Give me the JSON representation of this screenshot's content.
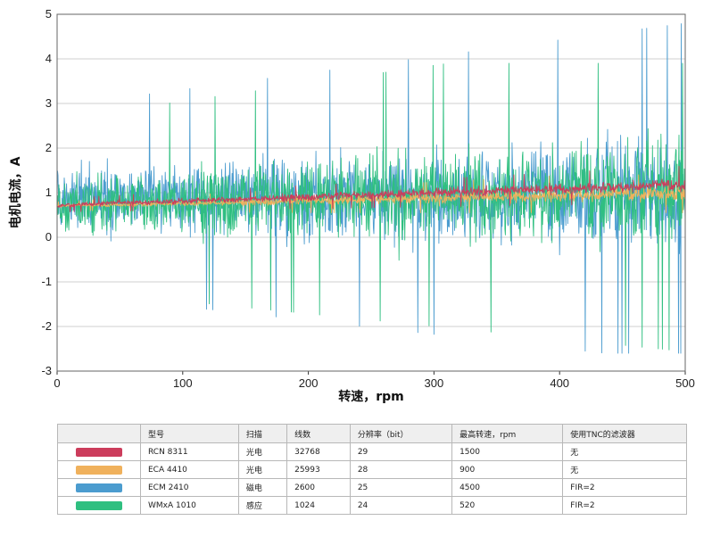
{
  "chart_data": {
    "type": "line",
    "xlabel": "转速，rpm",
    "ylabel": "电机电流，A",
    "xlim": [
      0,
      500
    ],
    "ylim": [
      -3,
      5
    ],
    "x_ticks": [
      "0",
      "100",
      "200",
      "300",
      "400",
      "500"
    ],
    "y_ticks": [
      "-3",
      "-2",
      "-1",
      "0",
      "1",
      "2",
      "3",
      "4",
      "5"
    ],
    "grid": "horizontal",
    "series": [
      {
        "name": "ECM 2410",
        "color": "#4b9ccf",
        "center_start": 0.85,
        "center_end": 1.0,
        "spread_start": 1.1,
        "spread_end": 2.0,
        "max_y": 4.9,
        "min_y": -2.6
      },
      {
        "name": "WMxA 1010",
        "color": "#2fbf80",
        "center_start": 0.75,
        "center_end": 1.05,
        "spread_start": 1.0,
        "spread_end": 1.9,
        "max_y": 3.9,
        "min_y": -2.8
      },
      {
        "name": "ECA 4410",
        "color": "#f0b15c",
        "center_start": 0.7,
        "center_end": 1.0,
        "spread_start": 0.05,
        "spread_end": 0.28,
        "max_y": 1.4,
        "min_y": 0.55
      },
      {
        "name": "RCN 8311",
        "color": "#cc3d5c",
        "center_start": 0.72,
        "center_end": 1.18,
        "spread_start": 0.08,
        "spread_end": 0.22,
        "max_y": 1.65,
        "min_y": 0.55
      }
    ]
  },
  "table": {
    "headers": [
      "",
      "型号",
      "扫描",
      "线数",
      "分辨率（bit）",
      "最高转速，rpm",
      "使用TNC的滤波器"
    ],
    "rows": [
      {
        "color": "#cc3d5c",
        "model": "RCN 8311",
        "scan": "光电",
        "lines": "32768",
        "resolution": "29",
        "max_speed": "1500",
        "filter": "无"
      },
      {
        "color": "#f0b15c",
        "model": "ECA 4410",
        "scan": "光电",
        "lines": "25993",
        "resolution": "28",
        "max_speed": "900",
        "filter": "无"
      },
      {
        "color": "#4b9ccf",
        "model": "ECM 2410",
        "scan": "磁电",
        "lines": "2600",
        "resolution": "25",
        "max_speed": "4500",
        "filter": "FIR=2"
      },
      {
        "color": "#2fbf80",
        "model": "WMxA 1010",
        "scan": "感应",
        "lines": "1024",
        "resolution": "24",
        "max_speed": "520",
        "filter": "FIR=2"
      }
    ]
  }
}
